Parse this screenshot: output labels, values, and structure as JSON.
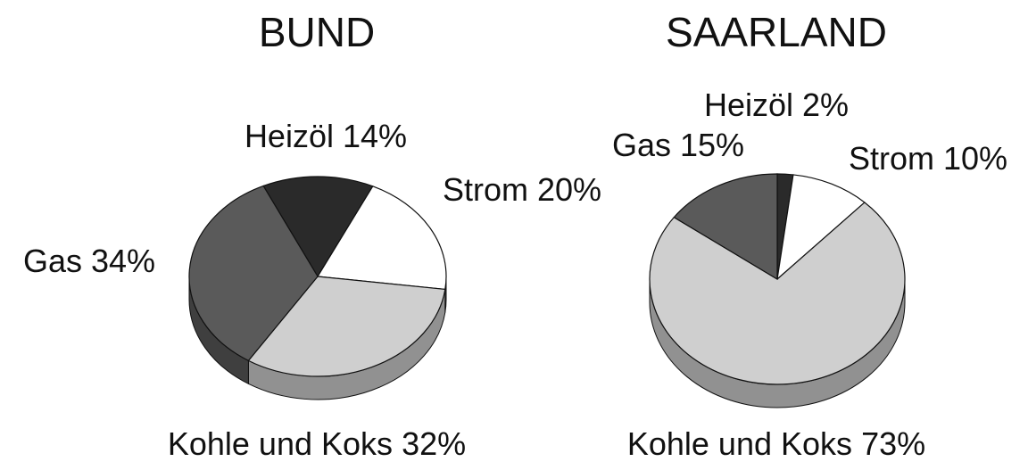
{
  "chart_data": [
    {
      "type": "pie",
      "title": "BUND",
      "categories": [
        "Heizöl",
        "Strom",
        "Kohle und Koks",
        "Gas"
      ],
      "values": [
        14,
        20,
        32,
        34
      ],
      "value_labels": [
        "14%",
        "20%",
        "32%",
        "34%"
      ],
      "colors": [
        "#2a2a2a",
        "#ffffff",
        "#cfcfcf",
        "#5a5a5a"
      ]
    },
    {
      "type": "pie",
      "title": "SAARLAND",
      "categories": [
        "Heizöl",
        "Strom",
        "Kohle und Koks",
        "Gas"
      ],
      "values": [
        2,
        10,
        73,
        15
      ],
      "value_labels": [
        "2%",
        "10%",
        "73%",
        "15%"
      ],
      "colors": [
        "#2a2a2a",
        "#ffffff",
        "#cfcfcf",
        "#5a5a5a"
      ]
    }
  ]
}
